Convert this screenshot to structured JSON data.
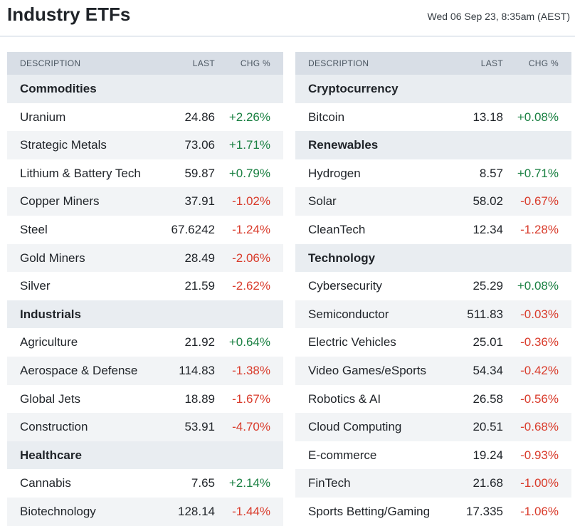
{
  "header": {
    "title": "Industry ETFs",
    "timestamp": "Wed 06 Sep 23, 8:35am (AEST)"
  },
  "columns": {
    "desc": "DESCRIPTION",
    "last": "LAST",
    "chg": "CHG %"
  },
  "colors": {
    "positive": "#1a8042",
    "negative": "#d93b2b",
    "header_bg": "#d8dee6"
  },
  "left_table": [
    {
      "group": "Commodities"
    },
    {
      "name": "Uranium",
      "last": "24.86",
      "chg": "+2.26%"
    },
    {
      "name": "Strategic Metals",
      "last": "73.06",
      "chg": "+1.71%"
    },
    {
      "name": "Lithium & Battery Tech",
      "last": "59.87",
      "chg": "+0.79%"
    },
    {
      "name": "Copper Miners",
      "last": "37.91",
      "chg": "-1.02%"
    },
    {
      "name": "Steel",
      "last": "67.6242",
      "chg": "-1.24%"
    },
    {
      "name": "Gold Miners",
      "last": "28.49",
      "chg": "-2.06%"
    },
    {
      "name": "Silver",
      "last": "21.59",
      "chg": "-2.62%"
    },
    {
      "group": "Industrials"
    },
    {
      "name": "Agriculture",
      "last": "21.92",
      "chg": "+0.64%"
    },
    {
      "name": "Aerospace & Defense",
      "last": "114.83",
      "chg": "-1.38%"
    },
    {
      "name": "Global Jets",
      "last": "18.89",
      "chg": "-1.67%"
    },
    {
      "name": "Construction",
      "last": "53.91",
      "chg": "-4.70%"
    },
    {
      "group": "Healthcare"
    },
    {
      "name": "Cannabis",
      "last": "7.65",
      "chg": "+2.14%"
    },
    {
      "name": "Biotechnology",
      "last": "128.14",
      "chg": "-1.44%"
    }
  ],
  "right_table": [
    {
      "group": "Cryptocurrency"
    },
    {
      "name": "Bitcoin",
      "last": "13.18",
      "chg": "+0.08%"
    },
    {
      "group": "Renewables"
    },
    {
      "name": "Hydrogen",
      "last": "8.57",
      "chg": "+0.71%"
    },
    {
      "name": "Solar",
      "last": "58.02",
      "chg": "-0.67%"
    },
    {
      "name": "CleanTech",
      "last": "12.34",
      "chg": "-1.28%"
    },
    {
      "group": "Technology"
    },
    {
      "name": "Cybersecurity",
      "last": "25.29",
      "chg": "+0.08%"
    },
    {
      "name": "Semiconductor",
      "last": "511.83",
      "chg": "-0.03%"
    },
    {
      "name": "Electric Vehicles",
      "last": "25.01",
      "chg": "-0.36%"
    },
    {
      "name": "Video Games/eSports",
      "last": "54.34",
      "chg": "-0.42%"
    },
    {
      "name": "Robotics & AI",
      "last": "26.58",
      "chg": "-0.56%"
    },
    {
      "name": "Cloud Computing",
      "last": "20.51",
      "chg": "-0.68%"
    },
    {
      "name": "E-commerce",
      "last": "19.24",
      "chg": "-0.93%"
    },
    {
      "name": "FinTech",
      "last": "21.68",
      "chg": "-1.00%"
    },
    {
      "name": "Sports Betting/Gaming",
      "last": "17.335",
      "chg": "-1.06%"
    }
  ]
}
